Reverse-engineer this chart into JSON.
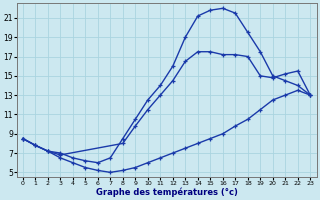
{
  "xlabel": "Graphe des températures (°c)",
  "xlim": [
    -0.5,
    23.5
  ],
  "ylim": [
    4.5,
    22.5
  ],
  "yticks": [
    5,
    7,
    9,
    11,
    13,
    15,
    17,
    19,
    21
  ],
  "xticks": [
    0,
    1,
    2,
    3,
    4,
    5,
    6,
    7,
    8,
    9,
    10,
    11,
    12,
    13,
    14,
    15,
    16,
    17,
    18,
    19,
    20,
    21,
    22,
    23
  ],
  "background_color": "#cce8f0",
  "grid_color": "#aad4e0",
  "line_color": "#1a3aaa",
  "line1_x": [
    0,
    1,
    2,
    3,
    4,
    5,
    6,
    7,
    8,
    9,
    10,
    11,
    12,
    13,
    14,
    15,
    16,
    17,
    18,
    19,
    20,
    21,
    22,
    23
  ],
  "line1_y": [
    8.5,
    7.8,
    7.2,
    7.0,
    6.5,
    6.2,
    6.0,
    6.5,
    8.5,
    10.5,
    12.5,
    14.0,
    16.0,
    19.0,
    21.2,
    21.8,
    22.0,
    21.5,
    19.5,
    17.5,
    15.0,
    14.5,
    14.0,
    13.0
  ],
  "line2_x": [
    0,
    1,
    2,
    3,
    4,
    5,
    6,
    7,
    8,
    9,
    10,
    11,
    12,
    13,
    14,
    15,
    16,
    17,
    18,
    19,
    20,
    21,
    22,
    23
  ],
  "line2_y": [
    8.5,
    7.8,
    7.2,
    6.5,
    6.0,
    5.5,
    5.2,
    5.0,
    5.2,
    5.5,
    6.0,
    6.5,
    7.0,
    7.5,
    8.0,
    8.5,
    9.0,
    9.8,
    10.5,
    11.5,
    12.5,
    13.0,
    13.5,
    13.0
  ],
  "line3_x": [
    0,
    1,
    2,
    3,
    8,
    9,
    10,
    11,
    12,
    13,
    14,
    15,
    16,
    17,
    18,
    19,
    20,
    21,
    22,
    23
  ],
  "line3_y": [
    8.5,
    7.8,
    7.2,
    6.8,
    8.0,
    9.8,
    11.5,
    13.0,
    14.5,
    16.5,
    17.5,
    17.5,
    17.2,
    17.2,
    17.0,
    15.0,
    14.8,
    15.2,
    15.5,
    13.0
  ]
}
